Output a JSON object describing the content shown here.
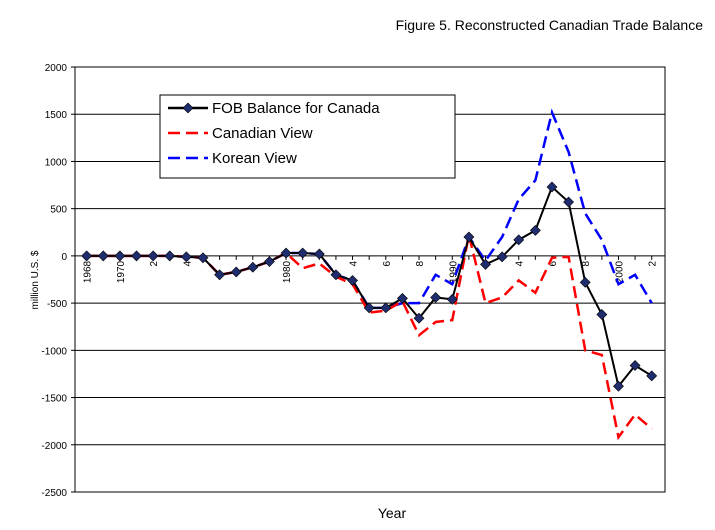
{
  "chart_data": {
    "type": "line",
    "title": "Figure 5. Reconstructed Canadian Trade Balance",
    "x_label": "Year",
    "y_label": "million U.S. $",
    "categories": [
      "1968",
      null,
      "1970",
      null,
      "2",
      null,
      "4",
      null,
      null,
      null,
      null,
      null,
      "1980",
      null,
      null,
      null,
      "4",
      null,
      "6",
      null,
      "8",
      null,
      "1990",
      null,
      "2",
      null,
      "4",
      null,
      "6",
      null,
      "8",
      null,
      "2000",
      null,
      "2"
    ],
    "series": [
      {
        "name": "FOB Balance for Canada",
        "color": "#000000",
        "dash": "solid",
        "marker": "diamond",
        "values": [
          0,
          0,
          0,
          0,
          0,
          0,
          -10,
          -20,
          -200,
          -170,
          -120,
          -60,
          30,
          30,
          20,
          -200,
          -260,
          -550,
          -550,
          -450,
          -660,
          -440,
          -460,
          200,
          -90,
          -10,
          170,
          270,
          730,
          570,
          -280,
          -620,
          -1380,
          -1160,
          -1270
        ]
      },
      {
        "name": "Canadian View",
        "color": "#ff0000",
        "dash": "dash",
        "marker": "none",
        "values": [
          0,
          0,
          0,
          0,
          0,
          0,
          -10,
          -20,
          -200,
          -170,
          -120,
          -60,
          30,
          -130,
          -80,
          -220,
          -300,
          -600,
          -580,
          -480,
          -840,
          -700,
          -680,
          220,
          -500,
          -440,
          -260,
          -390,
          -20,
          -10,
          -1000,
          -1050,
          -1920,
          -1680,
          -1830
        ]
      },
      {
        "name": "Korean View",
        "color": "#0000ff",
        "dash": "dash",
        "marker": "none",
        "values": [
          0,
          0,
          0,
          0,
          0,
          0,
          -10,
          -20,
          -200,
          -170,
          -120,
          -60,
          30,
          30,
          20,
          -200,
          -260,
          -550,
          -550,
          -500,
          -500,
          -200,
          -300,
          200,
          -50,
          200,
          600,
          800,
          1520,
          1100,
          450,
          170,
          -300,
          -200,
          -500
        ]
      }
    ],
    "ylim": [
      -2500,
      2000
    ],
    "yticks": [
      -2500,
      -2000,
      -1500,
      -1000,
      -500,
      0,
      500,
      1000,
      1500,
      2000
    ],
    "grid": true,
    "legend": "upper left"
  }
}
